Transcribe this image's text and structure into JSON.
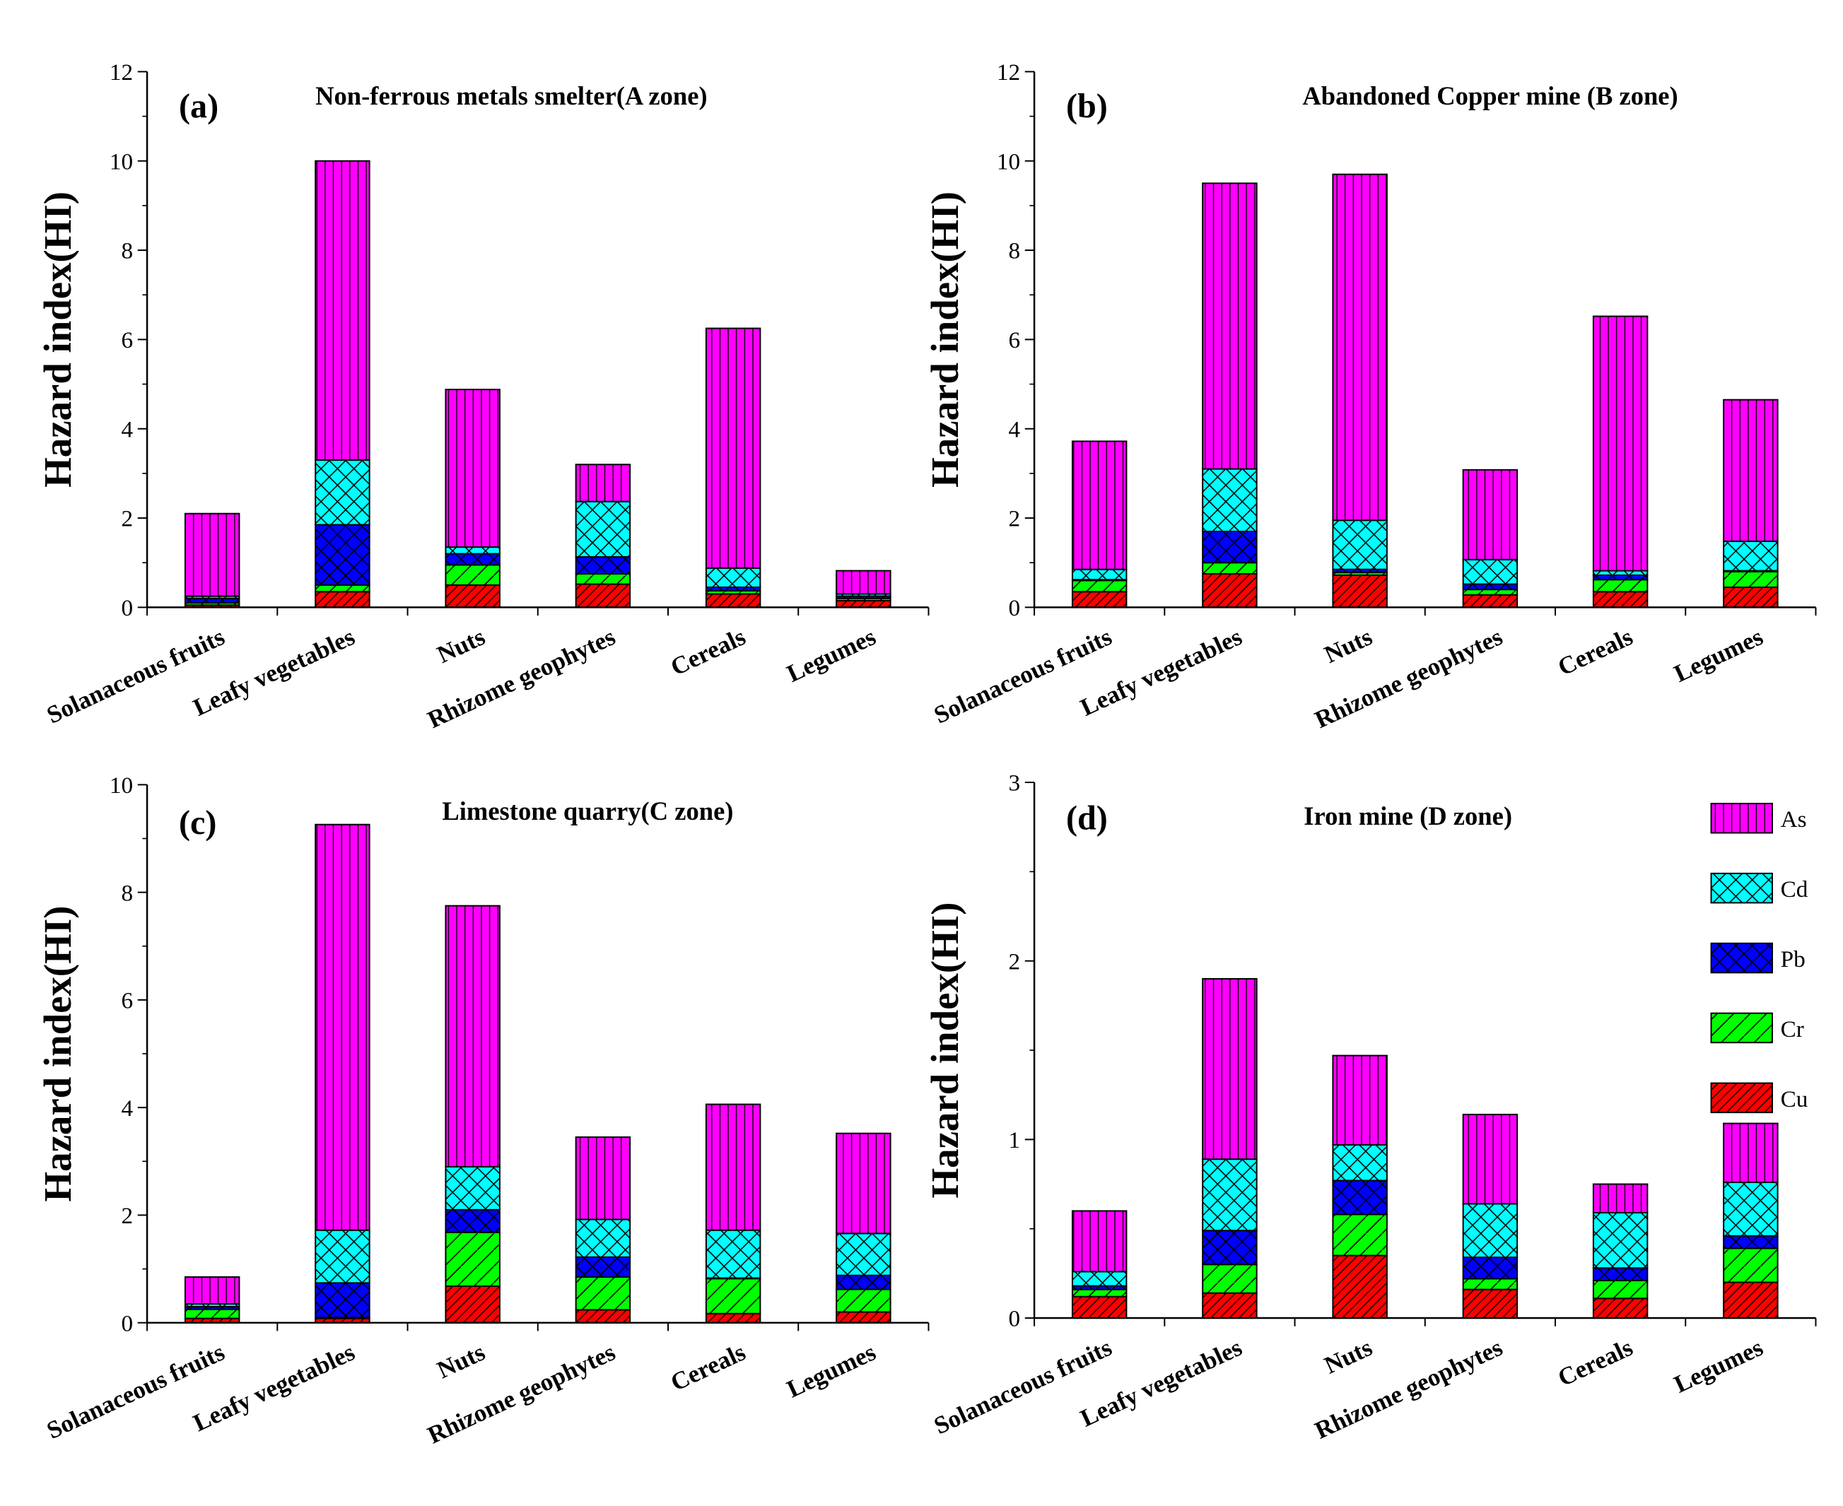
{
  "chart_data": [
    {
      "type": "bar",
      "stacked": true,
      "tag": "(a)",
      "title": "Non-ferrous metals smelter(A zone)",
      "ylabel": "Hazard index(HI)",
      "ylim": [
        0,
        12
      ],
      "yticks": [
        0,
        2,
        4,
        6,
        8,
        10,
        12
      ],
      "categories": [
        "Solanaceous fruits",
        "Leafy vegetables",
        "Nuts",
        "Rhizome geophytes",
        "Cereals",
        "Legumes"
      ],
      "cumulative": {
        "Cu": [
          0.05,
          0.35,
          0.5,
          0.52,
          0.3,
          0.15
        ],
        "Cr": [
          0.1,
          0.5,
          0.95,
          0.75,
          0.37,
          0.2
        ],
        "Pb": [
          0.2,
          1.85,
          1.2,
          1.13,
          0.45,
          0.25
        ],
        "Cd": [
          0.25,
          3.3,
          1.35,
          2.37,
          0.88,
          0.3
        ],
        "As": [
          2.1,
          10.0,
          4.88,
          3.2,
          6.25,
          0.82
        ]
      }
    },
    {
      "type": "bar",
      "stacked": true,
      "tag": "(b)",
      "title": "Abandoned Copper mine (B zone)",
      "ylabel": "Hazard index(HI)",
      "ylim": [
        0,
        12
      ],
      "yticks": [
        0,
        2,
        4,
        6,
        8,
        10,
        12
      ],
      "categories": [
        "Solanaceous fruits",
        "Leafy vegetables",
        "Nuts",
        "Rhizome geophytes",
        "Cereals",
        "Legumes"
      ],
      "cumulative": {
        "Cu": [
          0.35,
          0.75,
          0.72,
          0.28,
          0.35,
          0.45
        ],
        "Cr": [
          0.6,
          1.0,
          0.78,
          0.4,
          0.62,
          0.8
        ],
        "Pb": [
          0.62,
          1.7,
          0.85,
          0.52,
          0.72,
          0.82
        ],
        "Cd": [
          0.85,
          3.1,
          1.95,
          1.07,
          0.82,
          1.48
        ],
        "As": [
          3.72,
          9.5,
          9.7,
          3.08,
          6.52,
          4.65
        ]
      }
    },
    {
      "type": "bar",
      "stacked": true,
      "tag": "(c)",
      "title": "Limestone quarry(C zone)",
      "ylabel": "Hazard index(HI)",
      "ylim": [
        0,
        10
      ],
      "yticks": [
        0,
        2,
        4,
        6,
        8,
        10
      ],
      "categories": [
        "Solanaceous fruits",
        "Leafy vegetables",
        "Nuts",
        "Rhizome geophytes",
        "Cereals",
        "Legumes"
      ],
      "cumulative": {
        "Cu": [
          0.08,
          0.08,
          0.68,
          0.24,
          0.17,
          0.2
        ],
        "Cr": [
          0.25,
          0.1,
          1.68,
          0.85,
          0.82,
          0.62
        ],
        "Pb": [
          0.3,
          0.74,
          2.1,
          1.22,
          0.83,
          0.88
        ],
        "Cd": [
          0.35,
          1.72,
          2.9,
          1.92,
          1.72,
          1.66
        ],
        "As": [
          0.85,
          9.26,
          7.75,
          3.45,
          4.06,
          3.52
        ]
      }
    },
    {
      "type": "bar",
      "stacked": true,
      "tag": "(d)",
      "title": "Iron mine (D zone)",
      "ylabel": "Hazard index(HI)",
      "ylim": [
        0,
        3
      ],
      "yticks": [
        0,
        1,
        2,
        3
      ],
      "categories": [
        "Solanaceous fruits",
        "Leafy vegetables",
        "Nuts",
        "Rhizome geophytes",
        "Cereals",
        "Legumes"
      ],
      "cumulative": {
        "Cu": [
          0.12,
          0.14,
          0.35,
          0.16,
          0.11,
          0.2
        ],
        "Cr": [
          0.16,
          0.3,
          0.58,
          0.22,
          0.21,
          0.39
        ],
        "Pb": [
          0.18,
          0.49,
          0.77,
          0.34,
          0.28,
          0.46
        ],
        "Cd": [
          0.26,
          0.89,
          0.97,
          0.64,
          0.59,
          0.76
        ],
        "As": [
          0.6,
          1.9,
          1.47,
          1.14,
          0.75,
          1.09
        ]
      }
    }
  ],
  "legend": [
    {
      "name": "As",
      "color": "#ff00ff"
    },
    {
      "name": "Cd",
      "color": "#00ffff"
    },
    {
      "name": "Pb",
      "color": "#0000ff"
    },
    {
      "name": "Cr",
      "color": "#00ff00"
    },
    {
      "name": "Cu",
      "color": "#ff0000"
    }
  ]
}
